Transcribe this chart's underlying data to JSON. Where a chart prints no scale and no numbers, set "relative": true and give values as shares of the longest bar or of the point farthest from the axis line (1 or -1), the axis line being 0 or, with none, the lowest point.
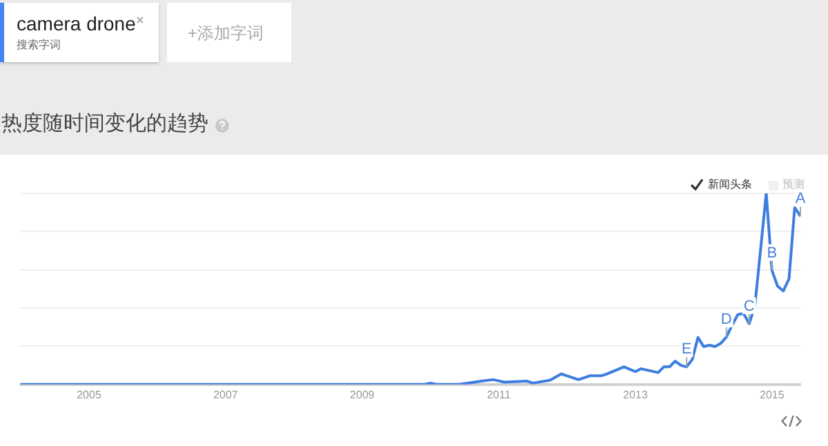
{
  "chart_data": {
    "type": "line",
    "title": "热度随时间变化的趋势",
    "relative": true,
    "grid": "y",
    "legend": false,
    "marker": "none",
    "line_style": "solid",
    "xlim": [
      "2004-01",
      "2015-06"
    ],
    "xticks": [
      "2005",
      "2007",
      "2009",
      "2011",
      "2013",
      "2015"
    ],
    "annotations": [
      "camera drone",
      "搜索字词",
      "+添加字词",
      "新闻头条",
      "预测",
      {
        "text": "E",
        "x": "2013-10",
        "y": 0.092
      },
      {
        "text": "D",
        "x": "2014-05",
        "y": 0.248
      },
      {
        "text": "C",
        "x": "2014-09",
        "y": 0.318
      },
      {
        "text": "B",
        "x": "2015-01",
        "y": 0.596
      },
      {
        "text": "A",
        "x": "2015-06",
        "y": 0.88
      }
    ],
    "series": [
      {
        "color": "#3d7de0",
        "x": [
          "2004-01",
          "2009-12",
          "2010-01",
          "2010-02",
          "2010-06",
          "2010-10",
          "2010-12",
          "2011-02",
          "2011-06",
          "2011-07",
          "2011-10",
          "2011-12",
          "2012-03",
          "2012-05",
          "2012-07",
          "2012-08",
          "2012-11",
          "2013-01",
          "2013-02",
          "2013-05",
          "2013-06",
          "2013-07",
          "2013-08",
          "2013-09",
          "2013-10",
          "2013-11",
          "2013-12",
          "2014-01",
          "2014-02",
          "2014-03",
          "2014-04",
          "2014-05",
          "2014-06",
          "2014-07",
          "2014-08",
          "2014-09",
          "2014-10",
          "2014-12",
          "2015-01",
          "2015-02",
          "2015-03",
          "2015-04",
          "2015-05",
          "2015-06"
        ],
        "values": [
          0,
          0,
          0.007,
          0,
          0,
          0.017,
          0.025,
          0.012,
          0.017,
          0.007,
          0.022,
          0.055,
          0.025,
          0.045,
          0.045,
          0.055,
          0.092,
          0.067,
          0.082,
          0.062,
          0.092,
          0.092,
          0.122,
          0.1,
          0.092,
          0.13,
          0.246,
          0.198,
          0.205,
          0.198,
          0.215,
          0.248,
          0.31,
          0.365,
          0.372,
          0.318,
          0.41,
          1,
          0.596,
          0.514,
          0.489,
          0.553,
          0.926,
          0.88
        ]
      }
    ]
  }
}
